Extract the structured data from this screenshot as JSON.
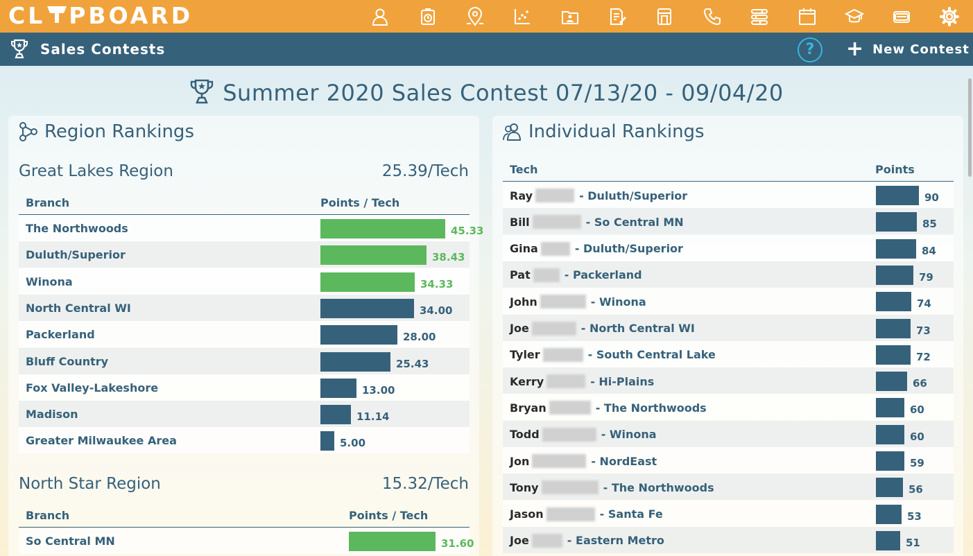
{
  "app": {
    "logo_text": "CL PBOARD",
    "icons": [
      "person-icon",
      "timer-icon",
      "location-icon",
      "scatter-chart-icon",
      "folder-person-icon",
      "document-edit-icon",
      "printer-icon",
      "phone-icon",
      "sliders-icon",
      "calendar-icon",
      "graduation-cap-icon",
      "credit-card-icon",
      "settings-icon"
    ]
  },
  "subheader": {
    "title": "Sales Contests",
    "help_label": "?",
    "new_contest_label": "New Contest"
  },
  "contest": {
    "title": "Summer 2020 Sales Contest 07/13/20 - 09/04/20"
  },
  "region_rankings": {
    "title": "Region Rankings",
    "regions": [
      {
        "name": "Great Lakes Region",
        "score": "25.39/Tech",
        "col_branch": "Branch",
        "col_points": "Points / Tech",
        "rows": [
          {
            "branch": "The Northwoods",
            "value": "45.33",
            "num": 45.33,
            "highlight": true
          },
          {
            "branch": "Duluth/Superior",
            "value": "38.43",
            "num": 38.43,
            "highlight": true
          },
          {
            "branch": "Winona",
            "value": "34.33",
            "num": 34.33,
            "highlight": true
          },
          {
            "branch": "North Central WI",
            "value": "34.00",
            "num": 34.0,
            "highlight": false
          },
          {
            "branch": "Packerland",
            "value": "28.00",
            "num": 28.0,
            "highlight": false
          },
          {
            "branch": "Bluff Country",
            "value": "25.43",
            "num": 25.43,
            "highlight": false
          },
          {
            "branch": "Fox Valley-Lakeshore",
            "value": "13.00",
            "num": 13.0,
            "highlight": false
          },
          {
            "branch": "Madison",
            "value": "11.14",
            "num": 11.14,
            "highlight": false
          },
          {
            "branch": "Greater Milwaukee Area",
            "value": "5.00",
            "num": 5.0,
            "highlight": false
          }
        ]
      },
      {
        "name": "North Star Region",
        "score": "15.32/Tech",
        "col_branch": "Branch",
        "col_points": "Points / Tech",
        "rows": [
          {
            "branch": "So Central MN",
            "value": "31.60",
            "num": 31.6,
            "highlight": true
          }
        ]
      }
    ]
  },
  "individual_rankings": {
    "title": "Individual Rankings",
    "col_tech": "Tech",
    "col_points": "Points",
    "rows": [
      {
        "first": "Ray",
        "branch": "- Duluth/Superior",
        "points": 90
      },
      {
        "first": "Bill",
        "branch": "- So Central MN",
        "points": 85
      },
      {
        "first": "Gina",
        "branch": "- Duluth/Superior",
        "points": 84
      },
      {
        "first": "Pat",
        "branch": "- Packerland",
        "points": 79
      },
      {
        "first": "John",
        "branch": "- Winona",
        "points": 74
      },
      {
        "first": "Joe",
        "branch": "- North Central WI",
        "points": 73
      },
      {
        "first": "Tyler",
        "branch": "- South Central Lake",
        "points": 72
      },
      {
        "first": "Kerry",
        "branch": "- Hi-Plains",
        "points": 66
      },
      {
        "first": "Bryan",
        "branch": "- The Northwoods",
        "points": 60
      },
      {
        "first": "Todd",
        "branch": "- Winona",
        "points": 60
      },
      {
        "first": "Jon",
        "branch": "- NordEast",
        "points": 59
      },
      {
        "first": "Tony",
        "branch": "- The Northwoods",
        "points": 56
      },
      {
        "first": "Jason",
        "branch": "- Santa Fe",
        "points": 53
      },
      {
        "first": "Joe",
        "branch": "- Eastern Metro",
        "points": 51
      }
    ]
  },
  "colors": {
    "orange": "#f0a33c",
    "navy": "#36617a",
    "green": "#5cb85c",
    "help_blue": "#37b6e0"
  }
}
